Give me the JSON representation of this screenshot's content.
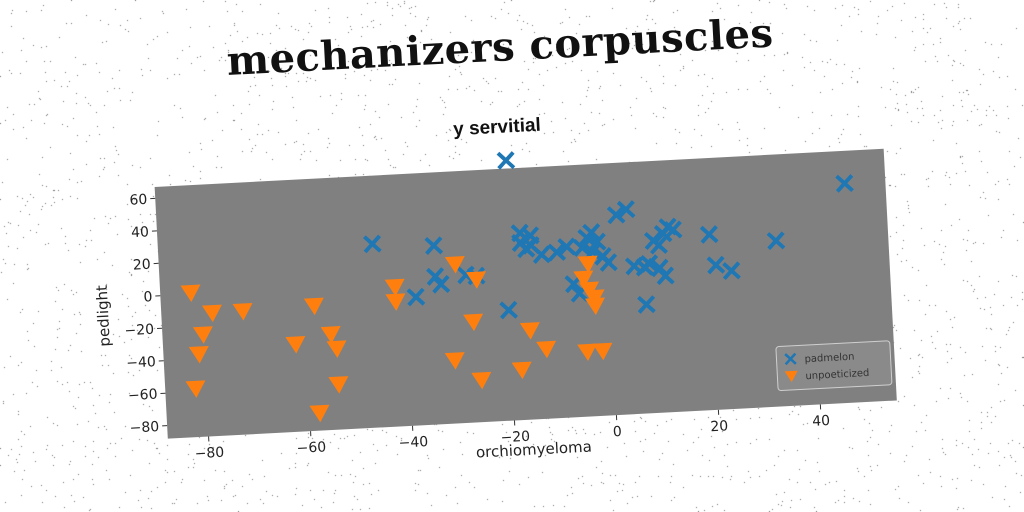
{
  "title": "mechanizers corpuscles",
  "chart_data": {
    "type": "scatter",
    "subtitle": "y servitial",
    "xlabel": "orchiomyeloma",
    "ylabel": "pedlight",
    "xlim": [
      -88,
      55
    ],
    "ylim": [
      -88,
      67
    ],
    "xticks": [
      -80,
      -60,
      -40,
      -20,
      0,
      20,
      40
    ],
    "yticks": [
      -80,
      -60,
      -40,
      -20,
      0,
      20,
      40,
      60
    ],
    "grid": false,
    "legend_position": "bottom-right",
    "background": "#808080",
    "series": [
      {
        "name": "padmelon",
        "marker": "X",
        "color": "#1f77b4",
        "points": [
          [
            -19,
            72
          ],
          [
            -46,
            25
          ],
          [
            -34,
            22
          ],
          [
            -34,
            3
          ],
          [
            -33,
            -2
          ],
          [
            -38,
            -9
          ],
          [
            -28,
            3
          ],
          [
            -26,
            2
          ],
          [
            -20,
            -20
          ],
          [
            -17,
            27
          ],
          [
            -17,
            21
          ],
          [
            -15,
            25
          ],
          [
            -15,
            19
          ],
          [
            -16,
            17
          ],
          [
            -13,
            13
          ],
          [
            -10,
            14
          ],
          [
            -8,
            17
          ],
          [
            -7,
            -6
          ],
          [
            -6,
            -12
          ],
          [
            -5,
            16
          ],
          [
            -4,
            22
          ],
          [
            -3,
            25
          ],
          [
            -2,
            19
          ],
          [
            -3,
            13
          ],
          [
            -1,
            10
          ],
          [
            0,
            6
          ],
          [
            2,
            35
          ],
          [
            4,
            38
          ],
          [
            5,
            3
          ],
          [
            7,
            2
          ],
          [
            7,
            -21
          ],
          [
            8,
            4
          ],
          [
            9,
            18
          ],
          [
            10,
            15
          ],
          [
            11,
            22
          ],
          [
            12,
            26
          ],
          [
            13,
            24
          ],
          [
            10,
            1
          ],
          [
            11,
            -4
          ],
          [
            20,
            20
          ],
          [
            21,
            1
          ],
          [
            24,
            -3
          ],
          [
            33,
            14
          ],
          [
            47,
            47
          ]
        ]
      },
      {
        "name": "unpoeticized",
        "marker": "v",
        "color": "#ff7f0e",
        "points": [
          [
            -82,
            1
          ],
          [
            -80,
            -25
          ],
          [
            -81,
            -37
          ],
          [
            -82,
            -58
          ],
          [
            -78,
            -12
          ],
          [
            -72,
            -12
          ],
          [
            -62,
            -34
          ],
          [
            -58,
            -11
          ],
          [
            -55,
            -29
          ],
          [
            -54,
            -38
          ],
          [
            -54,
            -60
          ],
          [
            -58,
            -77
          ],
          [
            -42,
            -11
          ],
          [
            -42,
            -2
          ],
          [
            -31,
            -49
          ],
          [
            -30,
            10
          ],
          [
            -27,
            -26
          ],
          [
            -26,
            0
          ],
          [
            -26,
            -62
          ],
          [
            -18,
            -57
          ],
          [
            -16,
            -33
          ],
          [
            -13,
            -45
          ],
          [
            -5,
            -3
          ],
          [
            -4,
            -10
          ],
          [
            -4,
            6
          ],
          [
            -3,
            -15
          ],
          [
            -3,
            -20
          ],
          [
            -5,
            -48
          ],
          [
            -2,
            -48
          ]
        ]
      }
    ]
  }
}
